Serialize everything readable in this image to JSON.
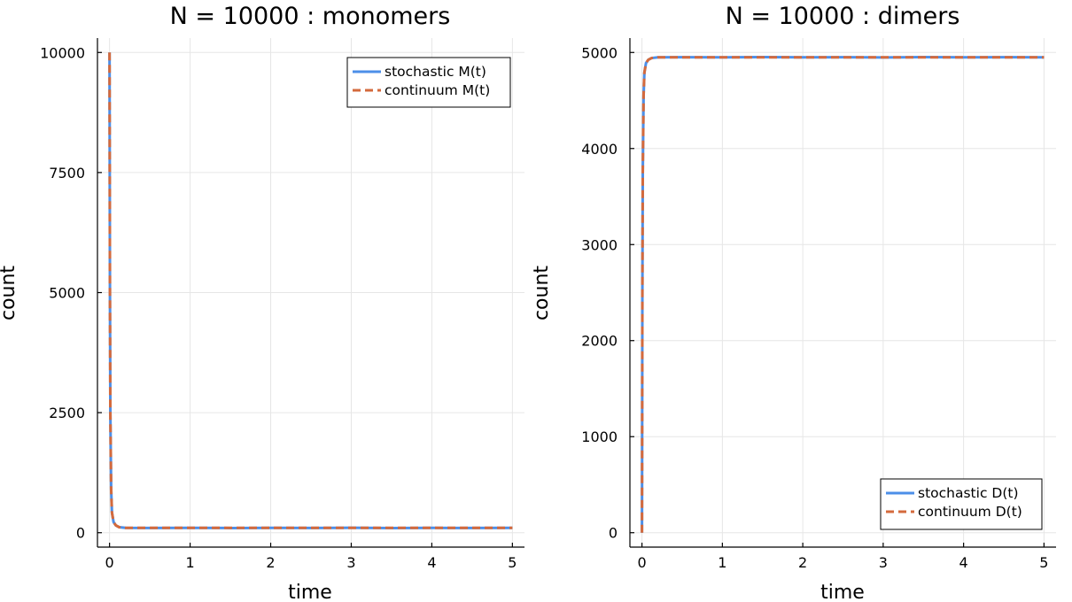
{
  "chart_data": [
    {
      "type": "line",
      "title": "N = 10000 : monomers",
      "xlabel": "time",
      "ylabel": "count",
      "xlim": [
        -0.15,
        5.15
      ],
      "ylim": [
        -300,
        10300
      ],
      "xticks": [
        0,
        1,
        2,
        3,
        4,
        5
      ],
      "yticks": [
        0,
        2500,
        5000,
        7500,
        10000
      ],
      "grid": true,
      "legend_position": "top-right",
      "series": [
        {
          "name": "stochastic M(t)",
          "style": "solid",
          "color": "#4c8fe8",
          "x": [
            0,
            0.005,
            0.01,
            0.02,
            0.03,
            0.05,
            0.08,
            0.12,
            0.2,
            0.5,
            1,
            1.5,
            2,
            2.5,
            3,
            3.5,
            4,
            4.5,
            5
          ],
          "y": [
            10000,
            5000,
            2500,
            900,
            420,
            220,
            150,
            115,
            100,
            98,
            102,
            97,
            100,
            99,
            103,
            96,
            101,
            98,
            100
          ]
        },
        {
          "name": "continuum M(t)",
          "style": "dashed",
          "color": "#d46a3c",
          "x": [
            0,
            0.005,
            0.01,
            0.02,
            0.03,
            0.05,
            0.08,
            0.12,
            0.2,
            0.5,
            1,
            1.5,
            2,
            2.5,
            3,
            3.5,
            4,
            4.5,
            5
          ],
          "y": [
            10000,
            5000,
            2500,
            900,
            420,
            220,
            150,
            115,
            100,
            100,
            100,
            100,
            100,
            100,
            100,
            100,
            100,
            100,
            100
          ]
        }
      ]
    },
    {
      "type": "line",
      "title": "N = 10000 : dimers",
      "xlabel": "time",
      "ylabel": "count",
      "xlim": [
        -0.15,
        5.15
      ],
      "ylim": [
        -150,
        5150
      ],
      "xticks": [
        0,
        1,
        2,
        3,
        4,
        5
      ],
      "yticks": [
        0,
        1000,
        2000,
        3000,
        4000,
        5000
      ],
      "grid": true,
      "legend_position": "bottom-right",
      "series": [
        {
          "name": "stochastic D(t)",
          "style": "solid",
          "color": "#4c8fe8",
          "x": [
            0,
            0.005,
            0.01,
            0.02,
            0.03,
            0.05,
            0.08,
            0.12,
            0.2,
            0.5,
            1,
            1.5,
            2,
            2.5,
            3,
            3.5,
            4,
            4.5,
            5
          ],
          "y": [
            0,
            2500,
            3750,
            4550,
            4790,
            4890,
            4925,
            4942,
            4950,
            4951,
            4949,
            4952,
            4950,
            4951,
            4948,
            4952,
            4950,
            4951,
            4950
          ]
        },
        {
          "name": "continuum D(t)",
          "style": "dashed",
          "color": "#d46a3c",
          "x": [
            0,
            0.005,
            0.01,
            0.02,
            0.03,
            0.05,
            0.08,
            0.12,
            0.2,
            0.5,
            1,
            1.5,
            2,
            2.5,
            3,
            3.5,
            4,
            4.5,
            5
          ],
          "y": [
            0,
            2500,
            3750,
            4550,
            4790,
            4890,
            4925,
            4942,
            4950,
            4950,
            4950,
            4950,
            4950,
            4950,
            4950,
            4950,
            4950,
            4950,
            4950
          ]
        }
      ]
    }
  ]
}
